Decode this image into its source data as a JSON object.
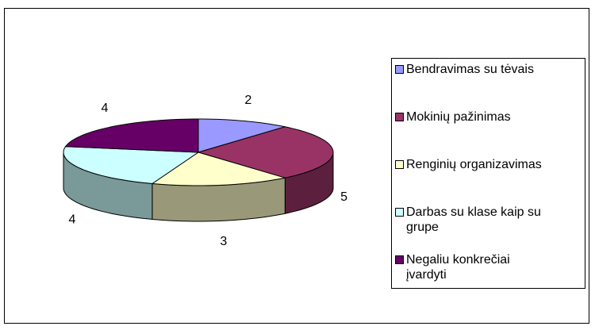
{
  "chart_data": {
    "type": "pie3d",
    "categories": [
      "Bendravimas su tėvais",
      "Mokinių pažinimas",
      "Renginių organizavimas",
      "Darbas su klase kaip su grupe",
      "Negaliu konkrečiai įvardyti"
    ],
    "values": [
      2,
      5,
      3,
      4,
      4
    ],
    "colors": [
      "#9999ff",
      "#993366",
      "#ffffcc",
      "#ccffff",
      "#660066"
    ],
    "legend": "right"
  }
}
